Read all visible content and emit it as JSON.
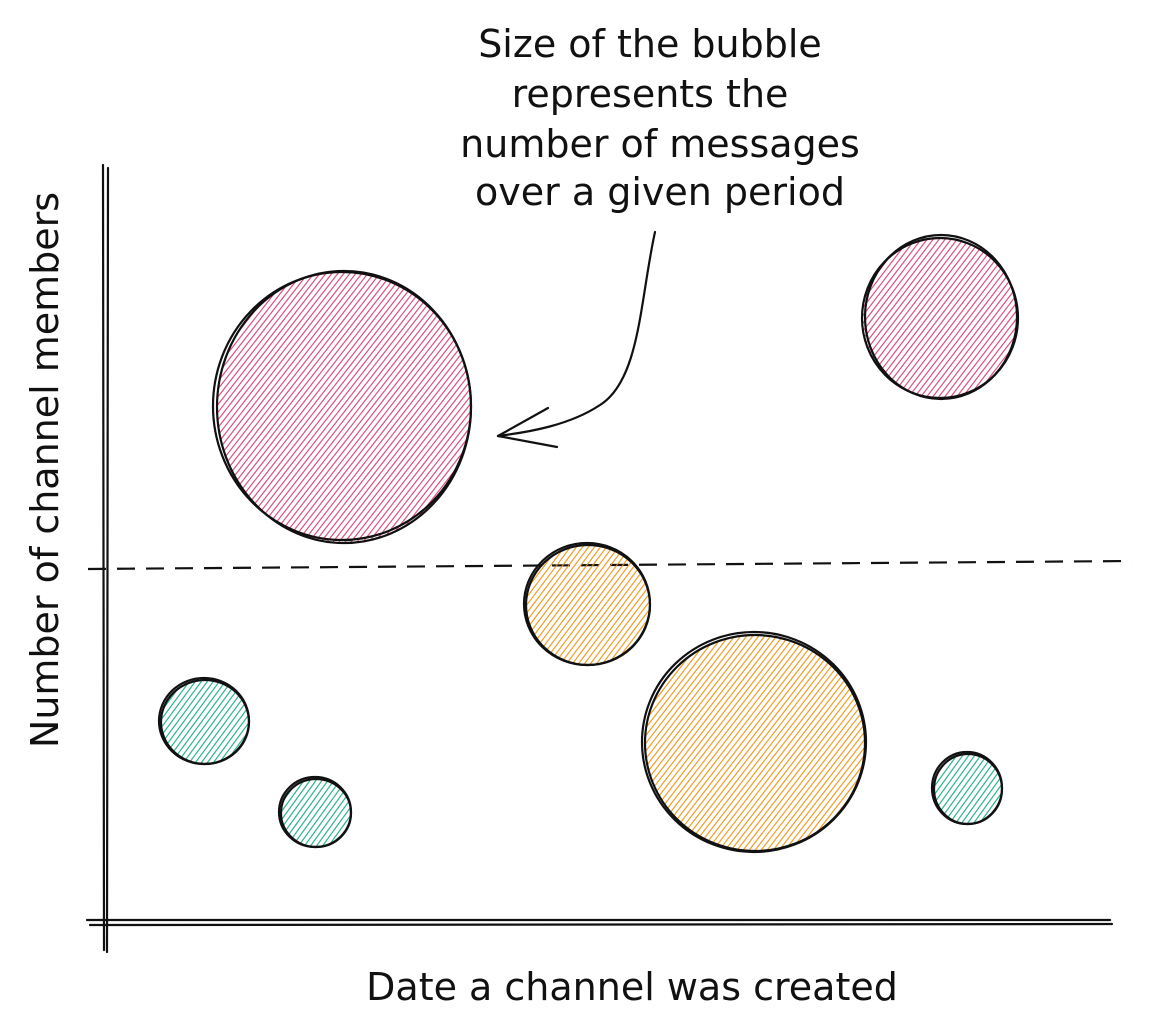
{
  "annotation": {
    "lines": [
      "Size of the bubble",
      "represents the",
      "number of messages",
      "over a given period"
    ]
  },
  "axes": {
    "x_label": "Date a channel was created",
    "y_label": "Number of channel members"
  },
  "colors": {
    "pink": "#d6336c",
    "orange": "#f08c00",
    "teal": "#0ca678",
    "ink": "#111111"
  },
  "threshold_line": {
    "style": "dashed"
  },
  "bubbles": [
    {
      "id": "pink-large",
      "color": "pink",
      "relative_size": "large"
    },
    {
      "id": "pink-medium",
      "color": "pink",
      "relative_size": "medium"
    },
    {
      "id": "orange-medium",
      "color": "orange",
      "relative_size": "medium"
    },
    {
      "id": "orange-large",
      "color": "orange",
      "relative_size": "large"
    },
    {
      "id": "teal-small-1",
      "color": "teal",
      "relative_size": "small"
    },
    {
      "id": "teal-small-2",
      "color": "teal",
      "relative_size": "small"
    },
    {
      "id": "teal-small-3",
      "color": "teal",
      "relative_size": "small"
    }
  ]
}
